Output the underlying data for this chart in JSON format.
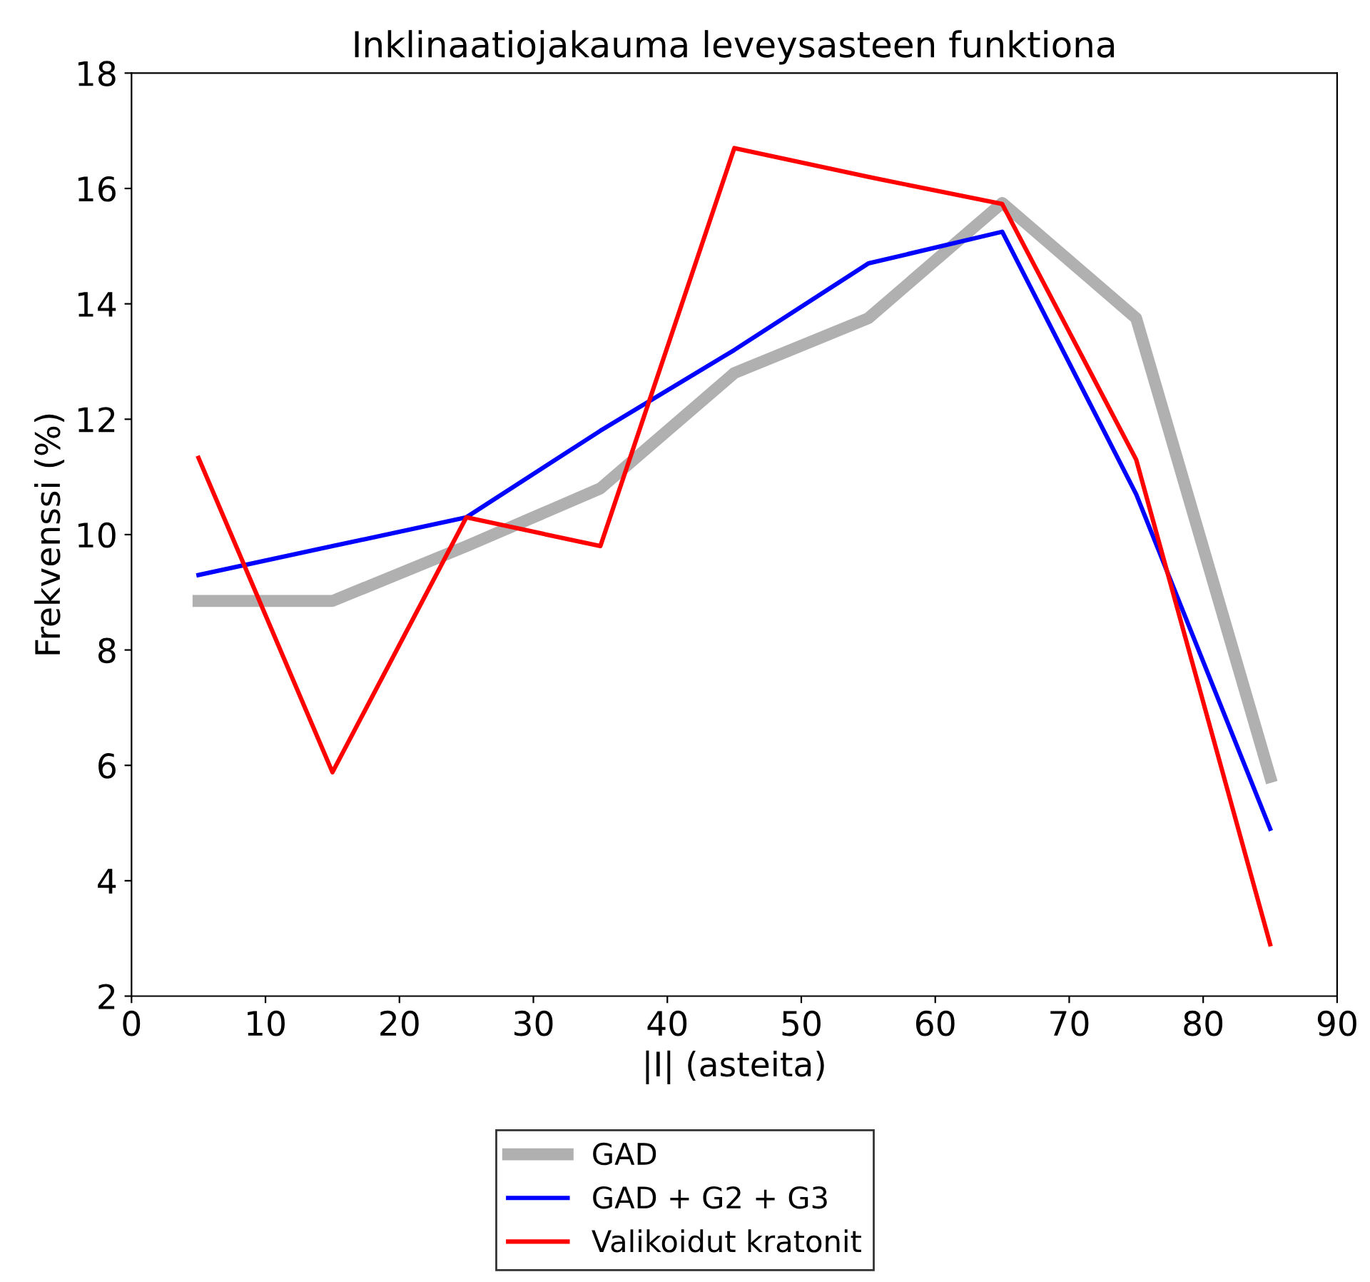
{
  "chart_data": {
    "type": "line",
    "title": "Inklinaatiojakauma leveysasteen funktiona",
    "xlabel": "|I| (asteita)",
    "ylabel": "Frekvenssi (%)",
    "x": [
      5,
      15,
      25,
      35,
      45,
      55,
      65,
      75,
      85
    ],
    "series": [
      {
        "name": "GAD",
        "color": "#b0b0b0",
        "values": [
          8.85,
          8.85,
          9.8,
          10.8,
          12.8,
          13.75,
          15.75,
          13.75,
          5.8
        ]
      },
      {
        "name": "GAD + G2 + G3",
        "color": "#0000ff",
        "values": [
          9.3,
          9.8,
          10.3,
          11.8,
          13.2,
          14.7,
          15.25,
          10.7,
          4.9
        ]
      },
      {
        "name": "Valikoidut kratonit",
        "color": "#ff0000",
        "values": [
          11.33,
          5.88,
          10.3,
          9.8,
          16.7,
          16.2,
          15.73,
          11.3,
          2.9
        ]
      }
    ],
    "xlim": [
      0,
      90
    ],
    "xticks": [
      0,
      10,
      20,
      30,
      40,
      50,
      60,
      70,
      80,
      90
    ],
    "ylim": [
      2,
      18
    ],
    "yticks": [
      2,
      4,
      6,
      8,
      10,
      12,
      14,
      16,
      18
    ],
    "grid": false,
    "legend": "bottom",
    "marker": "none",
    "line_style": "solid"
  }
}
